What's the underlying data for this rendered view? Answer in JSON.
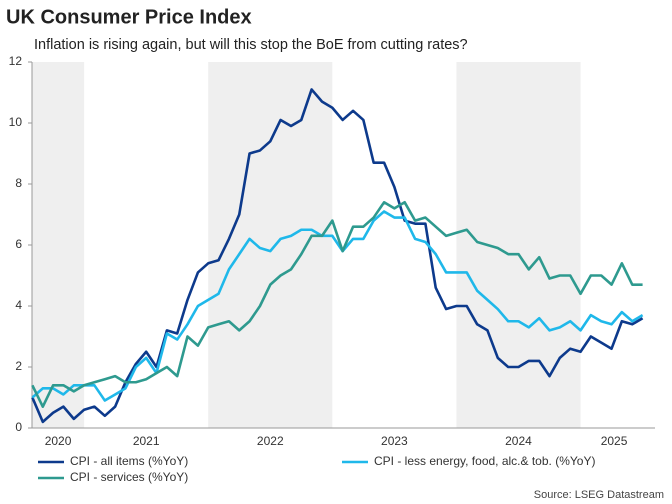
{
  "chart_data": {
    "type": "line",
    "title": "UK Consumer Price Index",
    "subtitle": "Inflation is rising again, but will this stop the BoE from cutting rates?",
    "source": "Source: LSEG Datastream",
    "x": [
      2020.583,
      2020.667,
      2020.75,
      2020.833,
      2020.917,
      2021.0,
      2021.083,
      2021.167,
      2021.25,
      2021.333,
      2021.417,
      2021.5,
      2021.583,
      2021.667,
      2021.75,
      2021.833,
      2021.917,
      2022.0,
      2022.083,
      2022.167,
      2022.25,
      2022.333,
      2022.417,
      2022.5,
      2022.583,
      2022.667,
      2022.75,
      2022.833,
      2022.917,
      2023.0,
      2023.083,
      2023.167,
      2023.25,
      2023.333,
      2023.417,
      2023.5,
      2023.583,
      2023.667,
      2023.75,
      2023.833,
      2023.917,
      2024.0,
      2024.083,
      2024.167,
      2024.25,
      2024.333,
      2024.417,
      2024.5,
      2024.583,
      2024.667,
      2024.75,
      2024.833,
      2024.917,
      2025.0,
      2025.083,
      2025.167,
      2025.25,
      2025.333,
      2025.417,
      2025.5
    ],
    "series": [
      {
        "name": "CPI - all items (%YoY)",
        "color": "#0d3a8c",
        "values": [
          1.0,
          0.2,
          0.5,
          0.7,
          0.3,
          0.6,
          0.7,
          0.4,
          0.7,
          1.5,
          2.1,
          2.5,
          2.0,
          3.2,
          3.1,
          4.2,
          5.1,
          5.4,
          5.5,
          6.2,
          7.0,
          9.0,
          9.1,
          9.4,
          10.1,
          9.9,
          10.1,
          11.1,
          10.7,
          10.5,
          10.1,
          10.4,
          10.1,
          8.7,
          8.7,
          7.9,
          6.8,
          6.7,
          6.7,
          4.6,
          3.9,
          4.0,
          4.0,
          3.4,
          3.2,
          2.3,
          2.0,
          2.0,
          2.2,
          2.2,
          1.7,
          2.3,
          2.6,
          2.5,
          3.0,
          2.8,
          2.6,
          3.5,
          3.4,
          3.6
        ]
      },
      {
        "name": "CPI - less energy, food, alc.& tob. (%YoY)",
        "color": "#1fb8ea",
        "values": [
          1.0,
          1.3,
          1.3,
          1.1,
          1.4,
          1.4,
          1.4,
          0.9,
          1.1,
          1.3,
          2.0,
          2.3,
          1.8,
          3.1,
          2.9,
          3.4,
          4.0,
          4.2,
          4.4,
          5.2,
          5.7,
          6.2,
          5.9,
          5.8,
          6.2,
          6.3,
          6.5,
          6.5,
          6.3,
          6.3,
          5.8,
          6.2,
          6.2,
          6.8,
          7.1,
          6.9,
          6.9,
          6.2,
          6.1,
          5.7,
          5.1,
          5.1,
          5.1,
          4.5,
          4.2,
          3.9,
          3.5,
          3.5,
          3.3,
          3.6,
          3.2,
          3.3,
          3.5,
          3.2,
          3.7,
          3.5,
          3.4,
          3.8,
          3.5,
          3.7
        ]
      },
      {
        "name": "CPI - services (%YoY)",
        "color": "#2e9a8f",
        "values": [
          1.4,
          0.7,
          1.4,
          1.4,
          1.2,
          1.4,
          1.5,
          1.6,
          1.7,
          1.5,
          1.5,
          1.6,
          1.8,
          2.0,
          1.7,
          3.0,
          2.7,
          3.3,
          3.4,
          3.5,
          3.2,
          3.5,
          4.0,
          4.7,
          5.0,
          5.2,
          5.7,
          6.3,
          6.3,
          6.8,
          5.8,
          6.6,
          6.6,
          6.9,
          7.4,
          7.2,
          7.4,
          6.8,
          6.9,
          6.6,
          6.3,
          6.4,
          6.5,
          6.1,
          6.0,
          5.9,
          5.7,
          5.7,
          5.2,
          5.6,
          4.9,
          5.0,
          5.0,
          4.4,
          5.0,
          5.0,
          4.7,
          5.4,
          4.7,
          4.7
        ]
      }
    ],
    "xlim": [
      2020.58,
      2025.6
    ],
    "xticks": [
      {
        "value": 2020.79,
        "label": "2020"
      },
      {
        "value": 2021.5,
        "label": "2021"
      },
      {
        "value": 2022.5,
        "label": "2022"
      },
      {
        "value": 2023.5,
        "label": "2023"
      },
      {
        "value": 2024.5,
        "label": "2024"
      },
      {
        "value": 2025.27,
        "label": "2025"
      }
    ],
    "ylim": [
      0,
      12
    ],
    "yticks": [
      0,
      2,
      4,
      6,
      8,
      10,
      12
    ],
    "shaded_spans": [
      [
        2020,
        2021
      ],
      [
        2022,
        2023
      ],
      [
        2024,
        2025
      ]
    ],
    "shade_color": "#efefef",
    "legend_position": "bottom"
  }
}
